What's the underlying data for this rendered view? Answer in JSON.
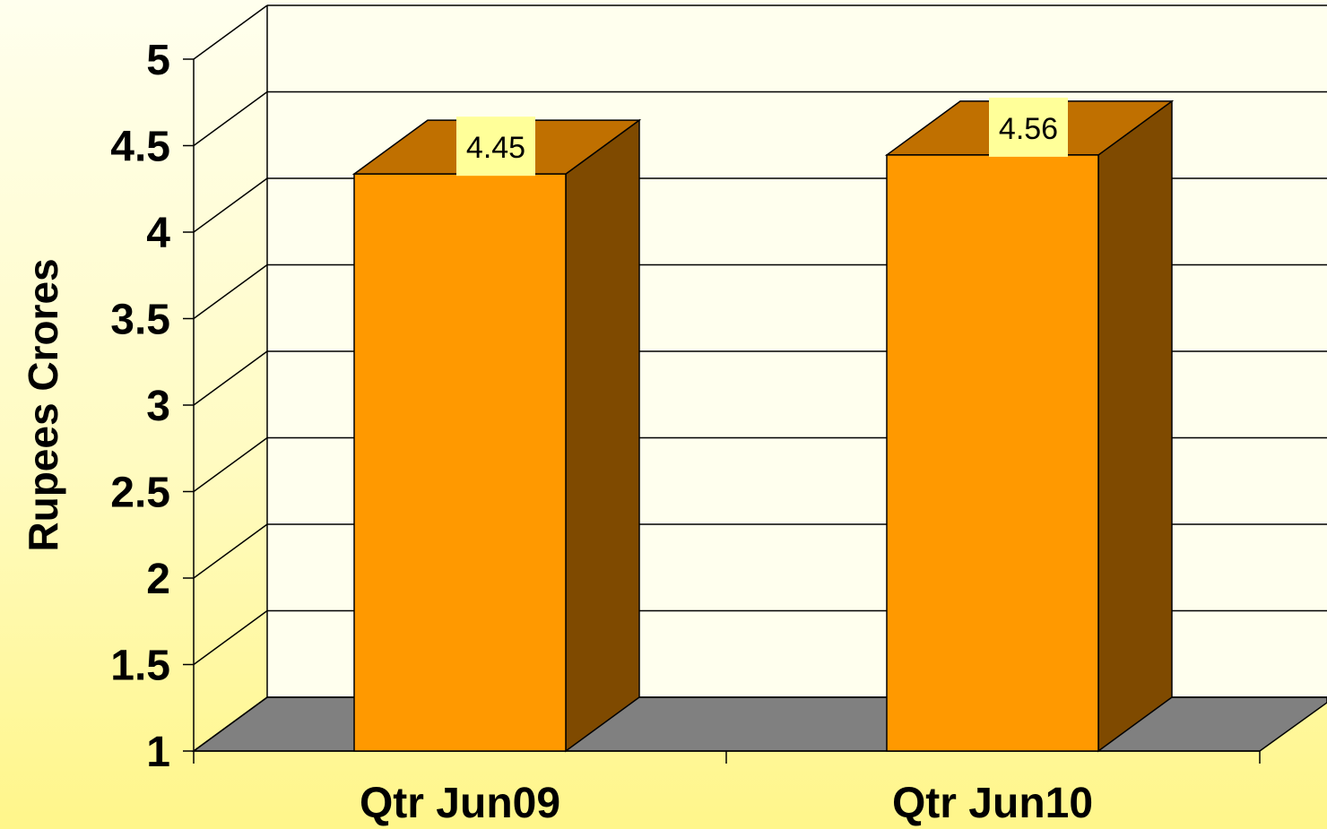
{
  "chart_data": {
    "type": "bar",
    "style": "3d-column",
    "categories": [
      "Qtr Jun09",
      "Qtr Jun10"
    ],
    "values": [
      4.45,
      4.56
    ],
    "data_labels": [
      "4.45",
      "4.56"
    ],
    "title": "",
    "xlabel": "",
    "ylabel": "Rupees Crores",
    "ylim": [
      1,
      5
    ],
    "yticks": [
      "1",
      "1.5",
      "2",
      "2.5",
      "3",
      "3.5",
      "4",
      "4.5",
      "5"
    ],
    "grid": true,
    "legend": "none"
  },
  "colors": {
    "bar_front": "#ff9900",
    "bar_side": "#7f4a00",
    "bar_top": "#c07000",
    "floor": "#808080",
    "plot_wall": "#ffffee",
    "data_label_bg": "#ffff99"
  }
}
